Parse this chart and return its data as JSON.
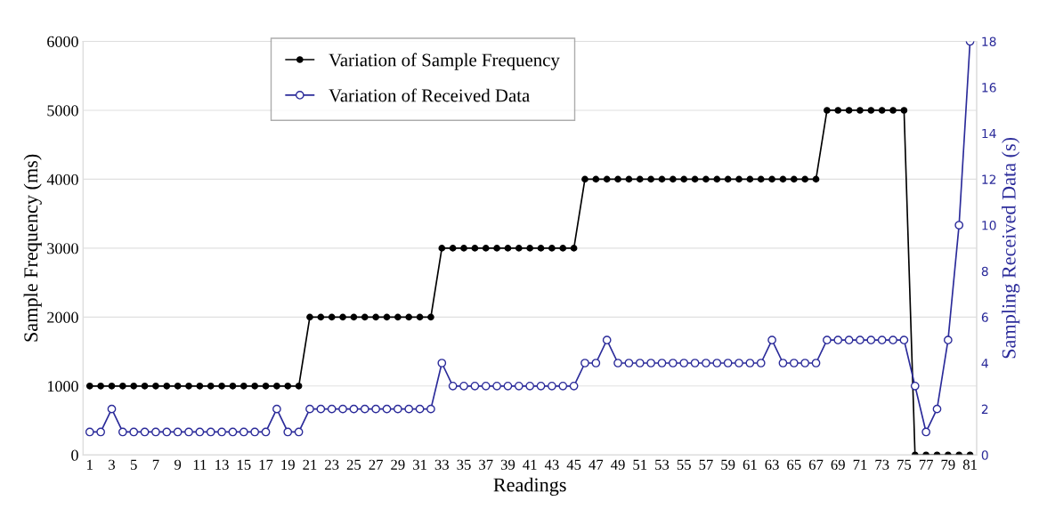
{
  "chart_data": {
    "type": "line",
    "xlabel": "Readings",
    "ylabel": "Sample Frequency (ms)",
    "y2label": "Sampling Received Data (s)",
    "categories": [
      "1",
      null,
      "3",
      null,
      "5",
      null,
      "7",
      null,
      "9",
      null,
      "11",
      null,
      "13",
      null,
      "15",
      null,
      "17",
      null,
      "19",
      null,
      "21",
      null,
      "23",
      null,
      "25",
      null,
      "27",
      null,
      "29",
      null,
      "31",
      null,
      "33",
      null,
      "35",
      null,
      "37",
      null,
      "39",
      null,
      "41",
      null,
      "43",
      null,
      "45",
      null,
      "47",
      null,
      "49",
      null,
      "51",
      null,
      "53",
      null,
      "55",
      null,
      "57",
      null,
      "59",
      null,
      "61",
      null,
      "63",
      null,
      "65",
      null,
      "67",
      null,
      "69",
      null,
      "71",
      null,
      "73",
      null,
      "75",
      null,
      "77",
      null,
      "79",
      null,
      "81"
    ],
    "series": [
      {
        "name": "Variation of Sample Frequency",
        "color": "#000000",
        "values": [
          1000,
          1000,
          1000,
          1000,
          1000,
          1000,
          1000,
          1000,
          1000,
          1000,
          1000,
          1000,
          1000,
          1000,
          1000,
          1000,
          1000,
          1000,
          1000,
          1000,
          2000,
          2000,
          2000,
          2000,
          2000,
          2000,
          2000,
          2000,
          2000,
          2000,
          2000,
          2000,
          3000,
          3000,
          3000,
          3000,
          3000,
          3000,
          3000,
          3000,
          3000,
          3000,
          3000,
          3000,
          3000,
          4000,
          4000,
          4000,
          4000,
          4000,
          4000,
          4000,
          4000,
          4000,
          4000,
          4000,
          4000,
          4000,
          4000,
          4000,
          4000,
          4000,
          4000,
          4000,
          4000,
          4000,
          4000,
          5000,
          5000,
          5000,
          5000,
          5000,
          5000,
          5000,
          5000,
          0,
          0,
          0,
          0,
          0,
          0
        ]
      },
      {
        "name": "Variation of Received Data",
        "color": "#2b2b9a",
        "axis": "y2",
        "values": [
          1,
          1,
          2,
          1,
          1,
          1,
          1,
          1,
          1,
          1,
          1,
          1,
          1,
          1,
          1,
          1,
          1,
          2,
          1,
          1,
          2,
          2,
          2,
          2,
          2,
          2,
          2,
          2,
          2,
          2,
          2,
          2,
          4,
          3,
          3,
          3,
          3,
          3,
          3,
          3,
          3,
          3,
          3,
          3,
          3,
          4,
          4,
          5,
          4,
          4,
          4,
          4,
          4,
          4,
          4,
          4,
          4,
          4,
          4,
          4,
          4,
          4,
          5,
          4,
          4,
          4,
          4,
          5,
          5,
          5,
          5,
          5,
          5,
          5,
          5,
          3,
          1,
          2,
          5,
          10,
          18
        ]
      }
    ],
    "ylim": [
      0,
      6000
    ],
    "yticks": [
      0,
      1000,
      2000,
      3000,
      4000,
      5000,
      6000
    ],
    "y2lim": [
      0,
      18
    ],
    "y2ticks": [
      0,
      2,
      4,
      6,
      8,
      10,
      12,
      14,
      16,
      18
    ],
    "grid": "y",
    "legend": "top left",
    "marker": "circle",
    "line_style": "solid"
  }
}
